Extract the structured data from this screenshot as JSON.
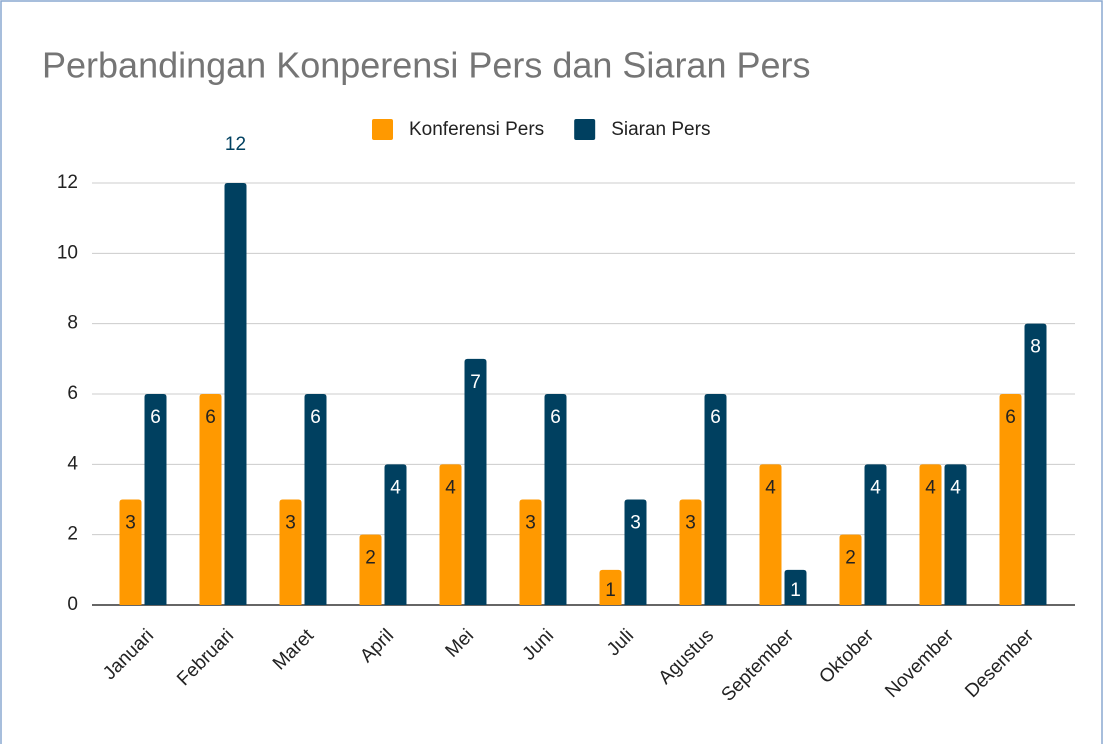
{
  "chart_data": {
    "type": "bar",
    "title": "Perbandingan Konperensi Pers dan Siaran Pers",
    "categories": [
      "Januari",
      "Februari",
      "Maret",
      "April",
      "Mei",
      "Juni",
      "Juli",
      "Agustus",
      "September",
      "Oktober",
      "November",
      "Desember"
    ],
    "series": [
      {
        "name": "Konferensi Pers",
        "color": "#ff9900",
        "values": [
          3,
          6,
          3,
          2,
          4,
          3,
          1,
          3,
          4,
          2,
          4,
          6
        ]
      },
      {
        "name": "Siaran Pers",
        "color": "#004060",
        "values": [
          6,
          12,
          6,
          4,
          7,
          6,
          3,
          6,
          1,
          4,
          4,
          8
        ]
      }
    ],
    "ylim": [
      0,
      12
    ],
    "yticks": [
      0,
      2,
      4,
      6,
      8,
      10,
      12
    ],
    "grid": true,
    "legend": "top"
  }
}
